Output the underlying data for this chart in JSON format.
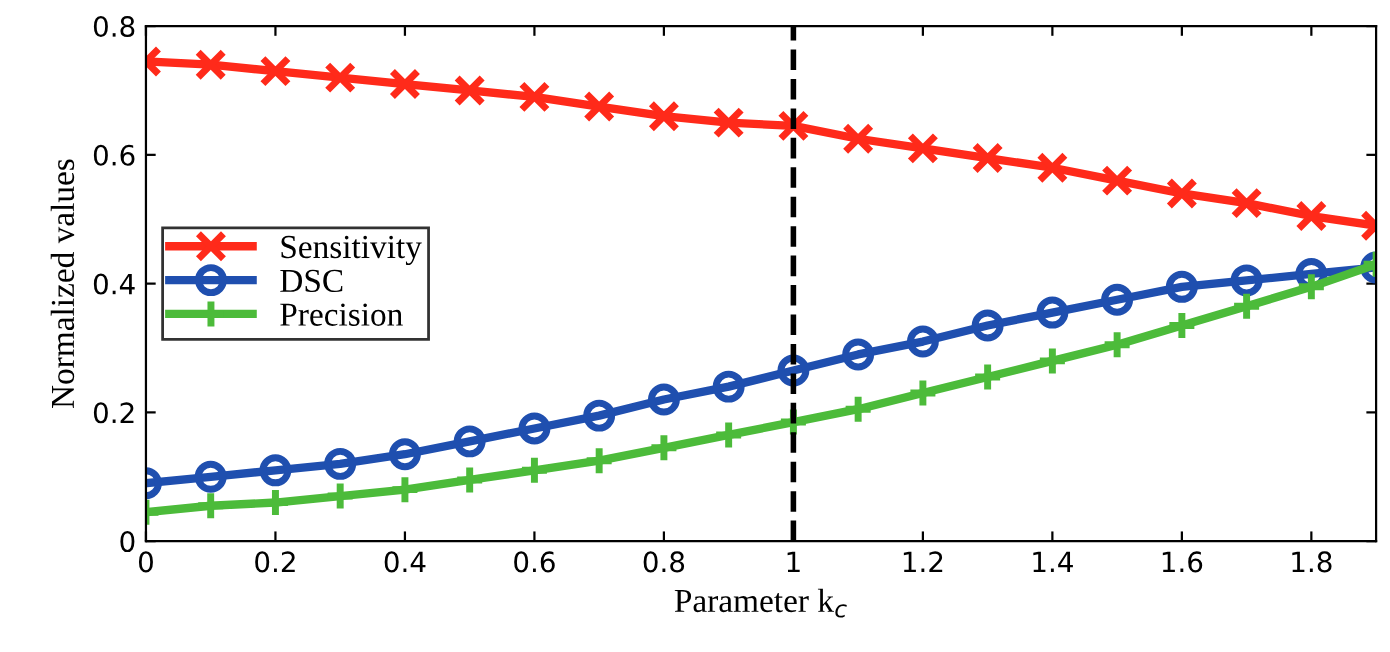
{
  "chart_data": {
    "type": "line",
    "xlabel": "Parameter k$_{c}$",
    "ylabel": "Normalized values",
    "x": [
      0,
      0.1,
      0.2,
      0.3,
      0.4,
      0.5,
      0.6,
      0.7,
      0.8,
      0.9,
      1.0,
      1.1,
      1.2,
      1.3,
      1.4,
      1.5,
      1.6,
      1.7,
      1.8,
      1.9
    ],
    "series": [
      {
        "name": "Sensitivity",
        "color": "#ff2a1a",
        "marker": "cross",
        "values": [
          0.745,
          0.74,
          0.73,
          0.72,
          0.71,
          0.7,
          0.69,
          0.675,
          0.66,
          0.65,
          0.645,
          0.625,
          0.61,
          0.595,
          0.58,
          0.56,
          0.54,
          0.525,
          0.505,
          0.49
        ]
      },
      {
        "name": "DSC",
        "color": "#1f4faf",
        "marker": "circle",
        "values": [
          0.09,
          0.1,
          0.11,
          0.12,
          0.135,
          0.155,
          0.175,
          0.195,
          0.22,
          0.24,
          0.265,
          0.29,
          0.31,
          0.335,
          0.355,
          0.375,
          0.395,
          0.405,
          0.415,
          0.425
        ]
      },
      {
        "name": "Precision",
        "color": "#4cbb3a",
        "marker": "plus",
        "values": [
          0.045,
          0.055,
          0.06,
          0.07,
          0.08,
          0.095,
          0.11,
          0.125,
          0.145,
          0.165,
          0.185,
          0.205,
          0.23,
          0.255,
          0.28,
          0.305,
          0.335,
          0.365,
          0.395,
          0.43
        ]
      }
    ],
    "xlim": [
      0,
      1.9
    ],
    "ylim": [
      0,
      0.8
    ],
    "xticks": [
      0,
      0.2,
      0.4,
      0.6,
      0.8,
      1,
      1.2,
      1.4,
      1.6,
      1.8
    ],
    "yticks": [
      0,
      0.2,
      0.4,
      0.6,
      0.8
    ],
    "ref_lines": [
      {
        "axis": "x",
        "value": 1,
        "color": "#000000",
        "line_style": "dashed"
      }
    ],
    "legend": "center left",
    "grid": false,
    "line_style": "solid"
  }
}
